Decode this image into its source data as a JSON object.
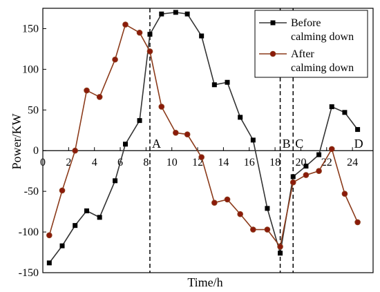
{
  "chart_data": {
    "type": "line",
    "xlabel": "Time/h",
    "ylabel": "Power/KW",
    "xlim": [
      0,
      25.6
    ],
    "ylim": [
      -150,
      175
    ],
    "x_ticks": [
      0,
      2,
      4,
      6,
      8,
      10,
      12,
      14,
      16,
      18,
      20,
      22,
      24
    ],
    "y_ticks": [
      -150,
      -100,
      -50,
      0,
      50,
      100,
      150
    ],
    "grid": false,
    "legend_position": "top-right",
    "series": [
      {
        "name": "Before\ncalming down",
        "color": "#333333",
        "marker": "square",
        "x": [
          0.5,
          1.5,
          2.5,
          3.4,
          4.4,
          5.6,
          6.4,
          7.5,
          8.3,
          9.2,
          10.3,
          11.2,
          12.3,
          13.3,
          14.3,
          15.3,
          16.3,
          17.4,
          18.4,
          19.4,
          20.4,
          21.4,
          22.4,
          23.4,
          24.4
        ],
        "y": [
          -138,
          -117,
          -92,
          -74,
          -82,
          -37,
          8,
          37,
          143,
          168,
          170,
          168,
          141,
          81,
          84,
          41,
          13,
          -71,
          -126,
          -32,
          -19,
          -5,
          54,
          47,
          26
        ]
      },
      {
        "name": "After\ncalming down",
        "color": "#8B3A1A",
        "marker": "circle",
        "x": [
          0.5,
          1.5,
          2.5,
          3.4,
          4.4,
          5.6,
          6.4,
          7.5,
          8.3,
          9.2,
          10.3,
          11.2,
          12.3,
          13.3,
          14.3,
          15.3,
          16.3,
          17.4,
          18.4,
          19.4,
          20.4,
          21.4,
          22.4,
          23.4,
          24.4
        ],
        "y": [
          -104,
          -49,
          0,
          74,
          66,
          112,
          155,
          145,
          122,
          54,
          22,
          20,
          -8,
          -64,
          -60,
          -78,
          -97,
          -97,
          -118,
          -39,
          -30,
          -25,
          2,
          -53,
          -88
        ]
      }
    ],
    "vlines": [
      {
        "x": 8.3,
        "label": "A"
      },
      {
        "x": 18.4,
        "label": "B"
      },
      {
        "x": 19.4,
        "label": "C"
      }
    ],
    "extra_labels": [
      {
        "x": 24.4,
        "label": "D"
      }
    ]
  }
}
